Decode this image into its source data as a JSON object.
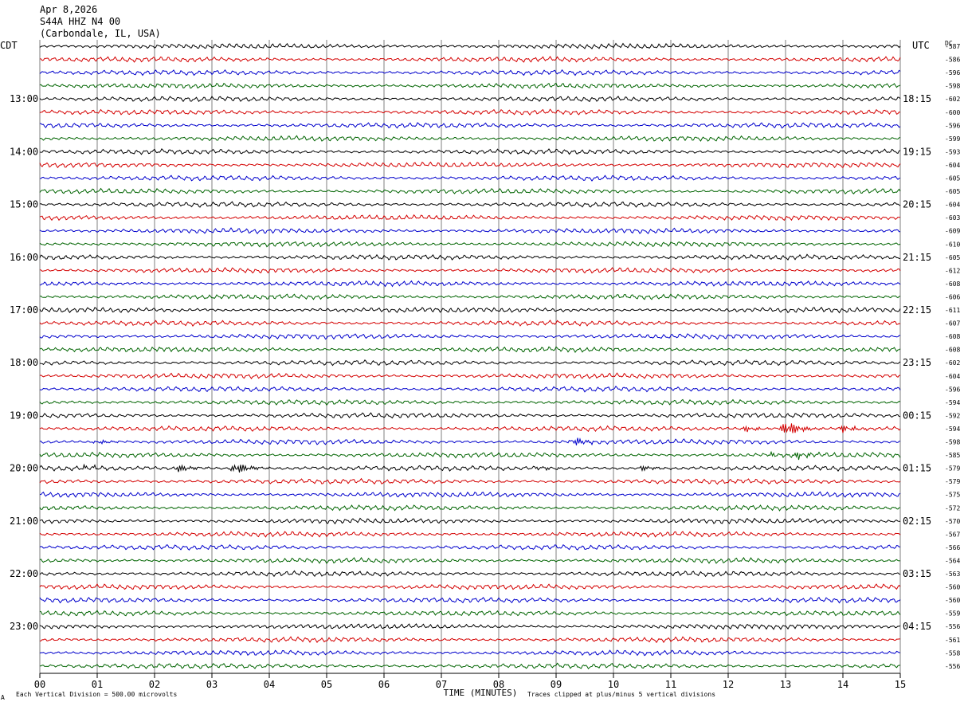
{
  "header": {
    "date": "Apr 8,2026",
    "station": "S44A HHZ N4 00",
    "location": "(Carbondale, IL, USA)"
  },
  "labels": {
    "left_zone": "CDT",
    "right_zone": "UTC",
    "dc_column": "DC",
    "x_title": "TIME (MINUTES)",
    "footer_scale": "Each Vertical Division =  500.00 microvolts",
    "footer_clip": "Traces clipped at plus/minus 5 vertical divisions",
    "corner_mark": "A"
  },
  "colors": {
    "cycle": [
      "#000000",
      "#d40000",
      "#0000cc",
      "#006400"
    ],
    "grid": "#7f7f7f"
  },
  "chart_data": {
    "type": "line",
    "title": "",
    "x_axis": {
      "label": "TIME (MINUTES)",
      "range": [
        0,
        15
      ],
      "ticks": [
        "00",
        "01",
        "02",
        "03",
        "04",
        "05",
        "06",
        "07",
        "08",
        "09",
        "10",
        "11",
        "12",
        "13",
        "14",
        "15"
      ]
    },
    "left_hour_labels": [
      {
        "row": 4,
        "text": "13:00"
      },
      {
        "row": 8,
        "text": "14:00"
      },
      {
        "row": 12,
        "text": "15:00"
      },
      {
        "row": 16,
        "text": "16:00"
      },
      {
        "row": 20,
        "text": "17:00"
      },
      {
        "row": 24,
        "text": "18:00"
      },
      {
        "row": 28,
        "text": "19:00"
      },
      {
        "row": 32,
        "text": "20:00"
      },
      {
        "row": 36,
        "text": "21:00"
      },
      {
        "row": 40,
        "text": "22:00"
      },
      {
        "row": 44,
        "text": "23:00"
      }
    ],
    "right_hour_labels": [
      {
        "row": 4,
        "text": "18:15"
      },
      {
        "row": 8,
        "text": "19:15"
      },
      {
        "row": 12,
        "text": "20:15"
      },
      {
        "row": 16,
        "text": "21:15"
      },
      {
        "row": 20,
        "text": "22:15"
      },
      {
        "row": 24,
        "text": "23:15"
      },
      {
        "row": 28,
        "text": "00:15"
      },
      {
        "row": 32,
        "text": "01:15"
      },
      {
        "row": 36,
        "text": "02:15"
      },
      {
        "row": 40,
        "text": "03:15"
      },
      {
        "row": 44,
        "text": "04:15"
      }
    ],
    "dc_offsets": [
      "-587",
      "-586",
      "-596",
      "-598",
      "-602",
      "-600",
      "-596",
      "-599",
      "-593",
      "-604",
      "-605",
      "-605",
      "-604",
      "-603",
      "-609",
      "-610",
      "-605",
      "-612",
      "-608",
      "-606",
      "-611",
      "-607",
      "-608",
      "-608",
      "-602",
      "-604",
      "-596",
      "-594",
      "-592",
      "-594",
      "-598",
      "-585",
      "-579",
      "-579",
      "-575",
      "-572",
      "-570",
      "-567",
      "-566",
      "-564",
      "-563",
      "-560",
      "-560",
      "-559",
      "-556",
      "-561",
      "-558",
      "-556"
    ],
    "events": [
      {
        "row": 29,
        "minute": 13.0,
        "amplitude": 2.6
      },
      {
        "row": 29,
        "minute": 12.3,
        "amplitude": 0.8
      },
      {
        "row": 29,
        "minute": 14.0,
        "amplitude": 1.0
      },
      {
        "row": 30,
        "minute": 9.3,
        "amplitude": 1.3
      },
      {
        "row": 30,
        "minute": 1.0,
        "amplitude": 0.6
      },
      {
        "row": 31,
        "minute": 13.2,
        "amplitude": 0.9
      },
      {
        "row": 31,
        "minute": 12.7,
        "amplitude": 0.6
      },
      {
        "row": 32,
        "minute": 3.4,
        "amplitude": 1.9
      },
      {
        "row": 32,
        "minute": 2.4,
        "amplitude": 1.1
      },
      {
        "row": 32,
        "minute": 0.8,
        "amplitude": 0.6
      },
      {
        "row": 32,
        "minute": 10.5,
        "amplitude": 0.7
      },
      {
        "row": 32,
        "minute": 8.7,
        "amplitude": 0.5
      }
    ]
  }
}
